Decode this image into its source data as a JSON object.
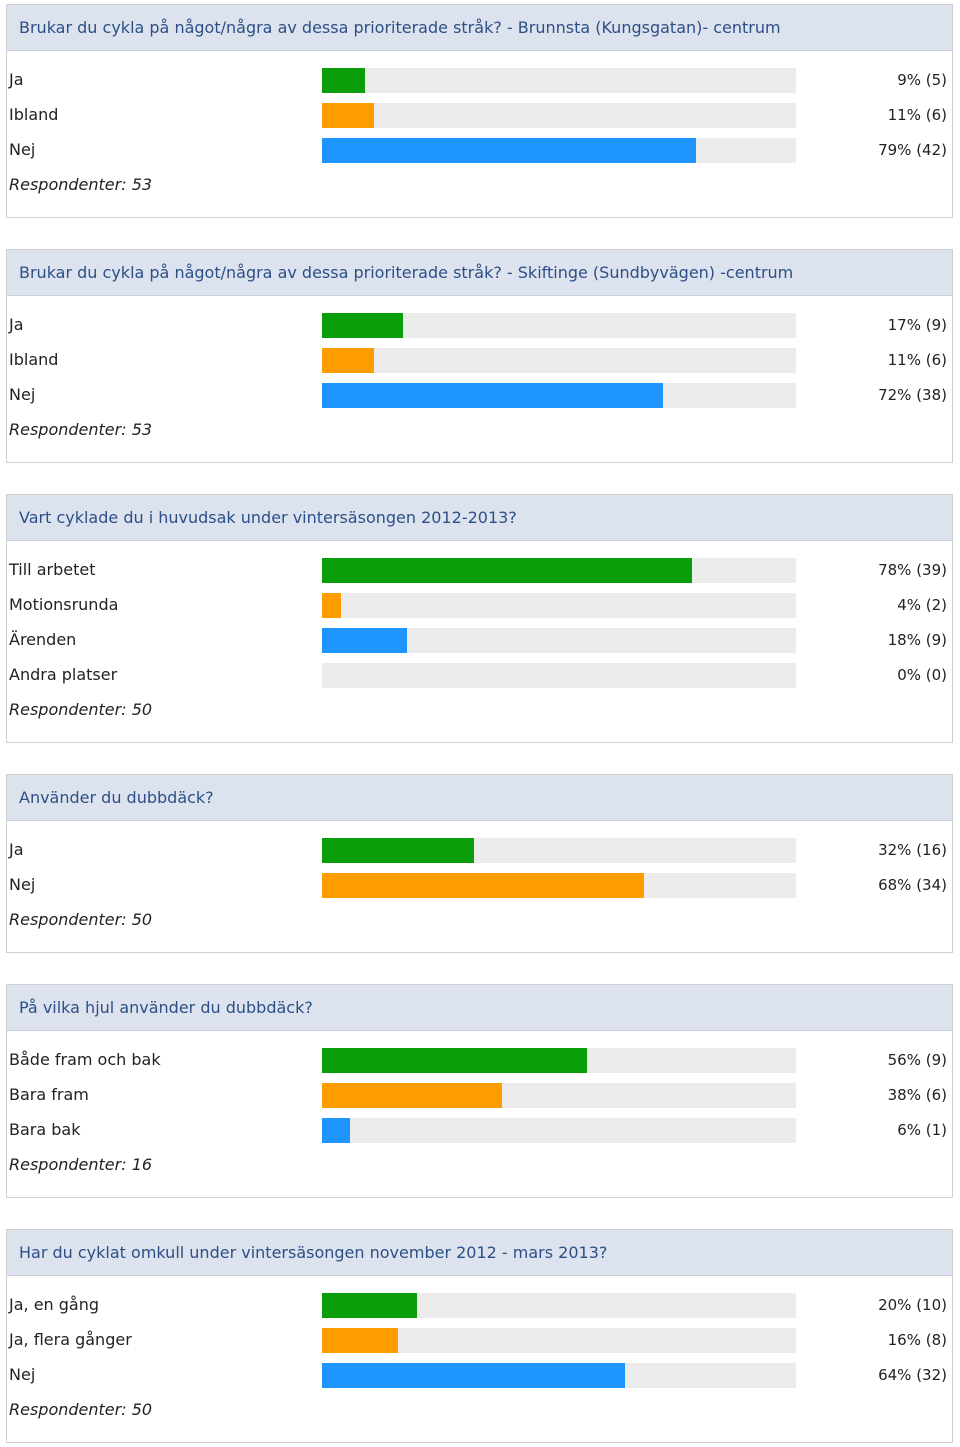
{
  "colors": {
    "green": "#0a9e0a",
    "orange": "#ff9c00",
    "blue": "#1f96ff",
    "track": "#ececec",
    "header_bg": "#dde3ee",
    "title_text": "#2c4f86"
  },
  "respondents_prefix": "Respondenter:",
  "chart_data": [
    {
      "type": "bar",
      "orientation": "horizontal",
      "title": "Brukar du cykla på något/några av dessa prioriterade stråk? - Brunnsta (Kungsgatan)- centrum",
      "categories": [
        "Ja",
        "Ibland",
        "Nej"
      ],
      "values": [
        9,
        11,
        79
      ],
      "counts": [
        5,
        6,
        42
      ],
      "value_labels": [
        "9% (5)",
        "11% (6)",
        "79% (42)"
      ],
      "bar_colors": [
        "green",
        "orange",
        "blue"
      ],
      "unit": "%",
      "xlim": [
        0,
        100
      ],
      "respondents": "53"
    },
    {
      "type": "bar",
      "orientation": "horizontal",
      "title": "Brukar du cykla på något/några av dessa prioriterade stråk? - Skiftinge (Sundbyvägen) -centrum",
      "categories": [
        "Ja",
        "Ibland",
        "Nej"
      ],
      "values": [
        17,
        11,
        72
      ],
      "counts": [
        9,
        6,
        38
      ],
      "value_labels": [
        "17% (9)",
        "11% (6)",
        "72% (38)"
      ],
      "bar_colors": [
        "green",
        "orange",
        "blue"
      ],
      "unit": "%",
      "xlim": [
        0,
        100
      ],
      "respondents": "53"
    },
    {
      "type": "bar",
      "orientation": "horizontal",
      "title": "Vart cyklade du i huvudsak under vintersäsongen 2012-2013?",
      "categories": [
        "Till arbetet",
        "Motionsrunda",
        "Ärenden",
        "Andra platser"
      ],
      "values": [
        78,
        4,
        18,
        0
      ],
      "counts": [
        39,
        2,
        9,
        0
      ],
      "value_labels": [
        "78% (39)",
        "4% (2)",
        "18% (9)",
        "0% (0)"
      ],
      "bar_colors": [
        "green",
        "orange",
        "blue",
        "blue"
      ],
      "unit": "%",
      "xlim": [
        0,
        100
      ],
      "respondents": "50"
    },
    {
      "type": "bar",
      "orientation": "horizontal",
      "title": "Använder du dubbdäck?",
      "categories": [
        "Ja",
        "Nej"
      ],
      "values": [
        32,
        68
      ],
      "counts": [
        16,
        34
      ],
      "value_labels": [
        "32% (16)",
        "68% (34)"
      ],
      "bar_colors": [
        "green",
        "orange"
      ],
      "unit": "%",
      "xlim": [
        0,
        100
      ],
      "respondents": "50"
    },
    {
      "type": "bar",
      "orientation": "horizontal",
      "title": "På vilka hjul använder du dubbdäck?",
      "categories": [
        "Både fram och bak",
        "Bara fram",
        "Bara bak"
      ],
      "values": [
        56,
        38,
        6
      ],
      "counts": [
        9,
        6,
        1
      ],
      "value_labels": [
        "56% (9)",
        "38% (6)",
        "6% (1)"
      ],
      "bar_colors": [
        "green",
        "orange",
        "blue"
      ],
      "unit": "%",
      "xlim": [
        0,
        100
      ],
      "respondents": "16"
    },
    {
      "type": "bar",
      "orientation": "horizontal",
      "title": "Har du cyklat omkull under vintersäsongen november 2012 - mars 2013?",
      "categories": [
        "Ja, en gång",
        "Ja, flera gånger",
        "Nej"
      ],
      "values": [
        20,
        16,
        64
      ],
      "counts": [
        10,
        8,
        32
      ],
      "value_labels": [
        "20% (10)",
        "16% (8)",
        "64% (32)"
      ],
      "bar_colors": [
        "green",
        "orange",
        "blue"
      ],
      "unit": "%",
      "xlim": [
        0,
        100
      ],
      "respondents": "50"
    }
  ]
}
